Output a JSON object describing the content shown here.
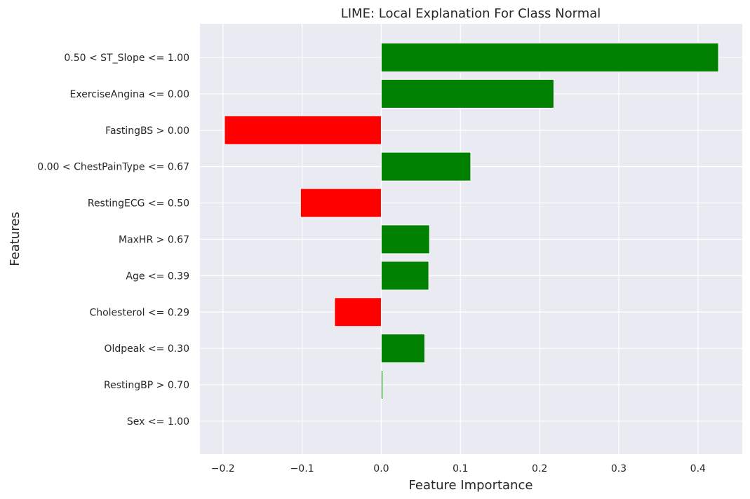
{
  "chart_data": {
    "type": "bar",
    "orientation": "horizontal",
    "title": "LIME: Local Explanation For Class Normal",
    "xlabel": "Feature Importance",
    "ylabel": "Features",
    "xlim": [
      -0.229,
      0.456
    ],
    "x_ticks": [
      -0.2,
      -0.1,
      0.0,
      0.1,
      0.2,
      0.3,
      0.4
    ],
    "x_tick_labels": [
      "−0.2",
      "−0.1",
      "0.0",
      "0.1",
      "0.2",
      "0.3",
      "0.4"
    ],
    "grid": true,
    "positive_color": "#008000",
    "negative_color": "#ff0000",
    "background_color": "#eaeaf2",
    "categories": [
      "0.50 < ST_Slope <= 1.00",
      "ExerciseAngina <= 0.00",
      "FastingBS > 0.00",
      "0.00 < ChestPainType <= 0.67",
      "RestingECG <= 0.50",
      "MaxHR > 0.67",
      "Age <= 0.39",
      "Cholesterol <= 0.29",
      "Oldpeak <= 0.30",
      "RestingBP > 0.70",
      "Sex <= 1.00"
    ],
    "values": [
      0.426,
      0.218,
      -0.198,
      0.113,
      -0.102,
      0.061,
      0.06,
      -0.059,
      0.055,
      0.002,
      0.0
    ]
  }
}
